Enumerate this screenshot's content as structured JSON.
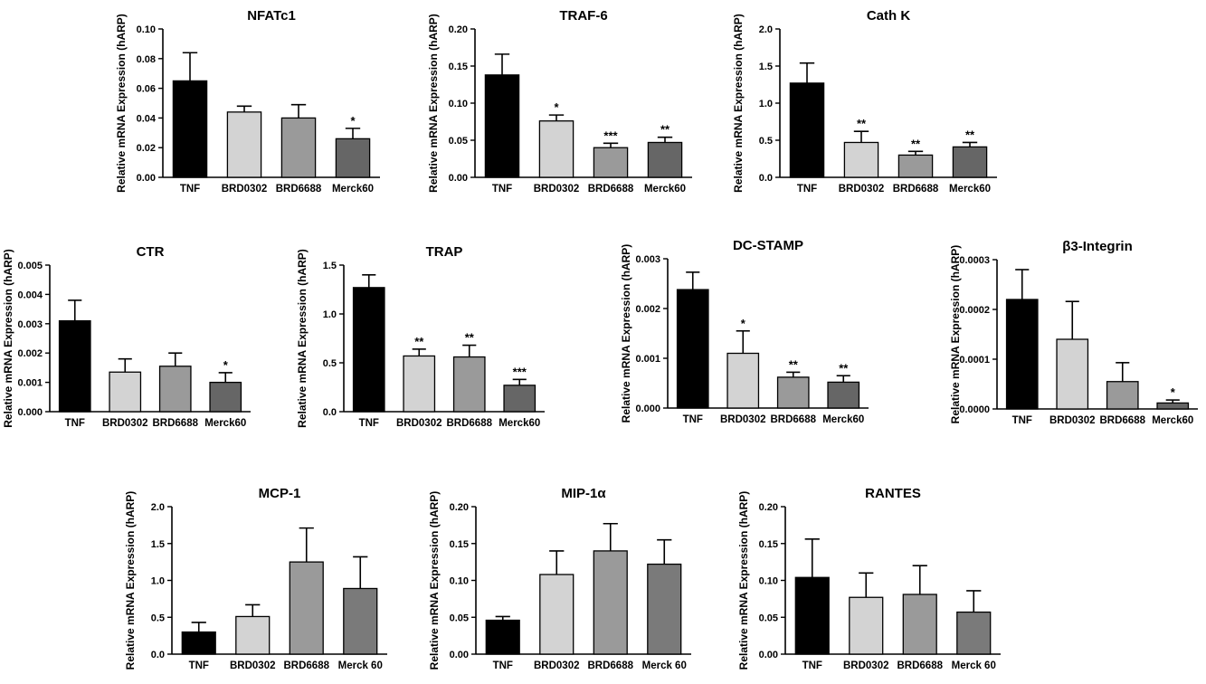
{
  "chart_data": [
    {
      "type": "bar",
      "title": "NFATc1",
      "ylabel": "Relative mRNA Expression (hARP)",
      "categories": [
        "TNF",
        "BRD0302",
        "BRD6688",
        "Merck60"
      ],
      "values": [
        0.065,
        0.044,
        0.04,
        0.026
      ],
      "errors": [
        0.019,
        0.004,
        0.009,
        0.007
      ],
      "significance": [
        "",
        "",
        "",
        "*"
      ],
      "ylim": [
        0,
        0.1
      ],
      "yticks": [
        "0.00",
        "0.02",
        "0.04",
        "0.06",
        "0.08",
        "0.10"
      ],
      "colors": [
        "#000000",
        "#d3d3d3",
        "#9a9a9a",
        "#666666"
      ]
    },
    {
      "type": "bar",
      "title": "TRAF-6",
      "ylabel": "Relative mRNA Expression (hARP)",
      "categories": [
        "TNF",
        "BRD0302",
        "BRD6688",
        "Merck60"
      ],
      "values": [
        0.138,
        0.076,
        0.04,
        0.047
      ],
      "errors": [
        0.028,
        0.008,
        0.006,
        0.007
      ],
      "significance": [
        "",
        "*",
        "***",
        "**"
      ],
      "ylim": [
        0,
        0.2
      ],
      "yticks": [
        "0.00",
        "0.05",
        "0.10",
        "0.15",
        "0.20"
      ],
      "colors": [
        "#000000",
        "#d3d3d3",
        "#9a9a9a",
        "#666666"
      ]
    },
    {
      "type": "bar",
      "title": "Cath K",
      "ylabel": "Relative mRNA Expression (hARP)",
      "categories": [
        "TNF",
        "BRD0302",
        "BRD6688",
        "Merck60"
      ],
      "values": [
        1.27,
        0.47,
        0.3,
        0.41
      ],
      "errors": [
        0.27,
        0.15,
        0.05,
        0.06
      ],
      "significance": [
        "",
        "**",
        "**",
        "**"
      ],
      "ylim": [
        0,
        2.0
      ],
      "yticks": [
        "0.0",
        "0.5",
        "1.0",
        "1.5",
        "2.0"
      ],
      "colors": [
        "#000000",
        "#d3d3d3",
        "#9a9a9a",
        "#666666"
      ]
    },
    {
      "type": "bar",
      "title": "CTR",
      "ylabel": "Relative mRNA Expression (hARP)",
      "categories": [
        "TNF",
        "BRD0302",
        "BRD6688",
        "Merck60"
      ],
      "values": [
        0.0031,
        0.00135,
        0.00155,
        0.001
      ],
      "errors": [
        0.0007,
        0.00045,
        0.00045,
        0.00033
      ],
      "significance": [
        "",
        "",
        "",
        "*"
      ],
      "ylim": [
        0,
        0.005
      ],
      "yticks": [
        "0.000",
        "0.001",
        "0.002",
        "0.003",
        "0.004",
        "0.005"
      ],
      "colors": [
        "#000000",
        "#d3d3d3",
        "#9a9a9a",
        "#666666"
      ]
    },
    {
      "type": "bar",
      "title": "TRAP",
      "ylabel": "Relative mRNA Expression (hARP)",
      "categories": [
        "TNF",
        "BRD0302",
        "BRD6688",
        "Merck60"
      ],
      "values": [
        1.27,
        0.57,
        0.56,
        0.27
      ],
      "errors": [
        0.13,
        0.07,
        0.12,
        0.06
      ],
      "significance": [
        "",
        "**",
        "**",
        "***"
      ],
      "ylim": [
        0,
        1.5
      ],
      "yticks": [
        "0.0",
        "0.5",
        "1.0",
        "1.5"
      ],
      "colors": [
        "#000000",
        "#d3d3d3",
        "#9a9a9a",
        "#666666"
      ]
    },
    {
      "type": "bar",
      "title": "DC-STAMP",
      "ylabel": "Relative mRNA Expression (hARP)",
      "categories": [
        "TNF",
        "BRD0302",
        "BRD6688",
        "Merck60"
      ],
      "values": [
        0.00238,
        0.0011,
        0.00062,
        0.00052
      ],
      "errors": [
        0.00035,
        0.00045,
        0.0001,
        0.00013
      ],
      "significance": [
        "",
        "*",
        "**",
        "**"
      ],
      "ylim": [
        0,
        0.003
      ],
      "yticks": [
        "0.000",
        "0.001",
        "0.002",
        "0.003"
      ],
      "colors": [
        "#000000",
        "#d3d3d3",
        "#9a9a9a",
        "#666666"
      ]
    },
    {
      "type": "bar",
      "title": "β3-Integrin",
      "ylabel": "Relative mRNA Expression (hARP)",
      "categories": [
        "TNF",
        "BRD0302",
        "BRD6688",
        "Merck60"
      ],
      "values": [
        0.00022,
        0.00014,
        5.5e-05,
        1.2e-05
      ],
      "errors": [
        6e-05,
        7.6e-05,
        3.8e-05,
        6e-06
      ],
      "significance": [
        "",
        "",
        "",
        "*"
      ],
      "ylim": [
        0,
        0.0003
      ],
      "yticks": [
        "0.0000",
        "0.0001",
        "0.0002",
        "0.0003"
      ],
      "colors": [
        "#000000",
        "#d3d3d3",
        "#9a9a9a",
        "#666666"
      ]
    },
    {
      "type": "bar",
      "title": "MCP-1",
      "ylabel": "Relative mRNA Expression (hARP)",
      "categories": [
        "TNF",
        "BRD0302",
        "BRD6688",
        "Merck 60"
      ],
      "values": [
        0.3,
        0.51,
        1.25,
        0.89
      ],
      "errors": [
        0.13,
        0.16,
        0.46,
        0.43
      ],
      "significance": [
        "",
        "",
        "",
        ""
      ],
      "ylim": [
        0,
        2.0
      ],
      "yticks": [
        "0.0",
        "0.5",
        "1.0",
        "1.5",
        "2.0"
      ],
      "colors": [
        "#000000",
        "#d3d3d3",
        "#9a9a9a",
        "#7a7a7a"
      ]
    },
    {
      "type": "bar",
      "title": "MIP-1α",
      "ylabel": "Relative mRNA Expression (hARP)",
      "categories": [
        "TNF",
        "BRD0302",
        "BRD6688",
        "Merck 60"
      ],
      "values": [
        0.046,
        0.108,
        0.14,
        0.122
      ],
      "errors": [
        0.005,
        0.032,
        0.037,
        0.033
      ],
      "significance": [
        "",
        "",
        "",
        ""
      ],
      "ylim": [
        0,
        0.2
      ],
      "yticks": [
        "0.00",
        "0.05",
        "0.10",
        "0.15",
        "0.20"
      ],
      "colors": [
        "#000000",
        "#d3d3d3",
        "#9a9a9a",
        "#7a7a7a"
      ]
    },
    {
      "type": "bar",
      "title": "RANTES",
      "ylabel": "Relative mRNA Expression (hARP)",
      "categories": [
        "TNF",
        "BRD0302",
        "BRD6688",
        "Merck 60"
      ],
      "values": [
        0.104,
        0.077,
        0.081,
        0.057
      ],
      "errors": [
        0.052,
        0.033,
        0.039,
        0.029
      ],
      "significance": [
        "",
        "",
        "",
        ""
      ],
      "ylim": [
        0,
        0.2
      ],
      "yticks": [
        "0.00",
        "0.05",
        "0.10",
        "0.15",
        "0.20"
      ],
      "colors": [
        "#000000",
        "#d3d3d3",
        "#9a9a9a",
        "#7a7a7a"
      ]
    }
  ]
}
